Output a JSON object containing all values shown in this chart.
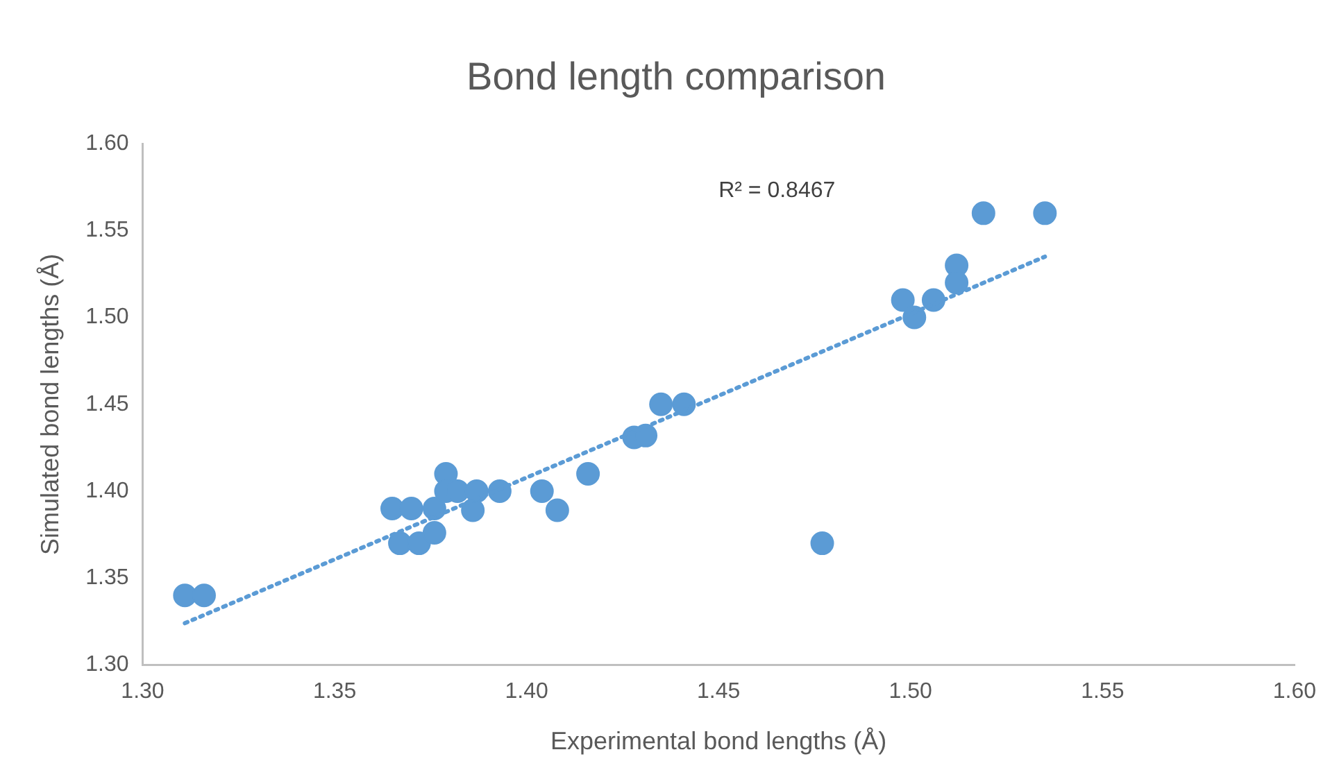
{
  "chart_data": {
    "type": "scatter",
    "title": "Bond length comparison",
    "xlabel": "Experimental bond lengths (Å)",
    "ylabel": "Simulated bond lengths (Å)",
    "annotations": [
      "R² = 0.8467"
    ],
    "xlim": [
      1.3,
      1.6
    ],
    "xticks": [
      {
        "value": 1.3,
        "label": "1.30"
      },
      1.35,
      {
        "value": 1.4,
        "label": "1.40"
      },
      1.45,
      {
        "value": 1.5,
        "label": "1.50"
      },
      1.55,
      {
        "value": 1.6,
        "label": "1.60"
      }
    ],
    "ylim": [
      1.3,
      1.6
    ],
    "yticks": [
      {
        "value": 1.3,
        "label": "1.30"
      },
      1.35,
      {
        "value": 1.4,
        "label": "1.40"
      },
      1.45,
      {
        "value": 1.5,
        "label": "1.50"
      },
      1.55,
      {
        "value": 1.6,
        "label": "1.60"
      }
    ],
    "grid": false,
    "legend": false,
    "marker": "circle",
    "series": [
      {
        "color": "#5b9bd5",
        "x": [
          1.311,
          1.316,
          1.365,
          1.367,
          1.37,
          1.372,
          1.376,
          1.376,
          1.379,
          1.379,
          1.382,
          1.386,
          1.387,
          1.393,
          1.404,
          1.408,
          1.416,
          1.428,
          1.431,
          1.435,
          1.441,
          1.477,
          1.498,
          1.501,
          1.506,
          1.512,
          1.512,
          1.519,
          1.535
        ],
        "values": [
          1.34,
          1.34,
          1.39,
          1.37,
          1.39,
          1.37,
          1.376,
          1.39,
          1.41,
          1.4,
          1.4,
          1.389,
          1.4,
          1.4,
          1.4,
          1.389,
          1.41,
          1.431,
          1.432,
          1.45,
          1.45,
          1.37,
          1.51,
          1.5,
          1.51,
          1.53,
          1.52,
          1.56,
          1.56
        ]
      },
      {
        "type": "line",
        "color": "#5b9bd5",
        "line_style": "dotted",
        "marker": "none",
        "x": [
          1.311,
          1.535
        ],
        "values": [
          1.324,
          1.535
        ]
      }
    ]
  }
}
